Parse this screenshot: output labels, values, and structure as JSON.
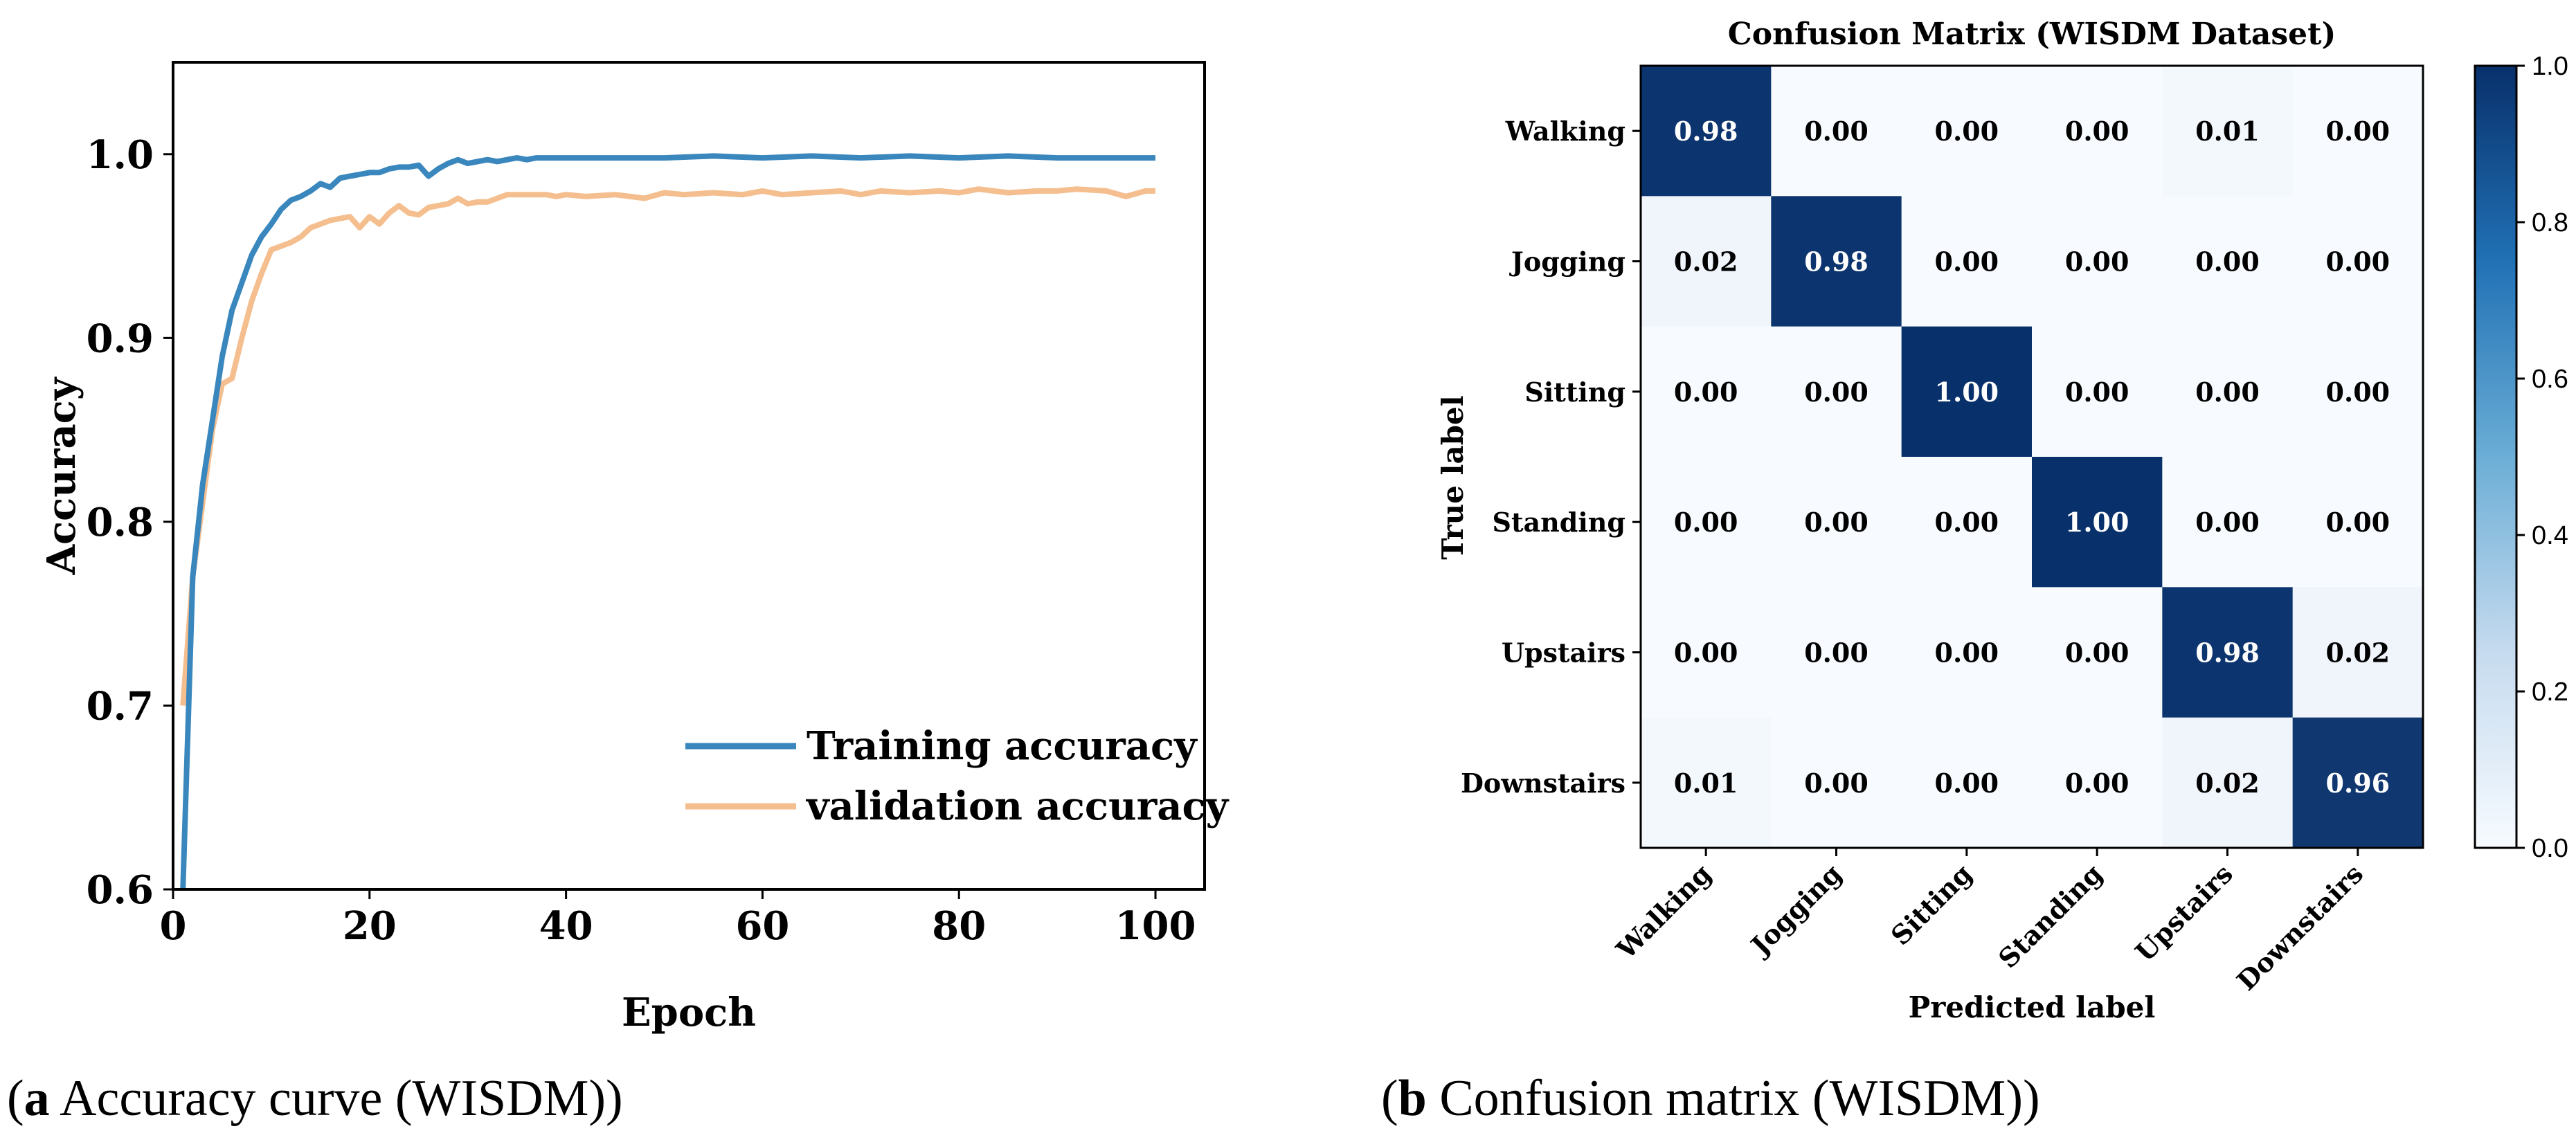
{
  "chart_data": [
    {
      "type": "line",
      "xlabel": "Epoch",
      "ylabel": "Accuracy",
      "xlim": [
        0,
        105
      ],
      "ylim": [
        0.6,
        1.05
      ],
      "xticks": [
        0,
        20,
        40,
        60,
        80,
        100
      ],
      "yticks": [
        0.6,
        0.7,
        0.8,
        0.9,
        1.0
      ],
      "xtick_labels": [
        "0",
        "20",
        "40",
        "60",
        "80",
        "100"
      ],
      "ytick_labels": [
        "0.6",
        "0.7",
        "0.8",
        "0.9",
        "1.0"
      ],
      "legend_position": "lower-right",
      "series": [
        {
          "name": "Training accuracy",
          "color": "#3a87be",
          "x": [
            1,
            2,
            3,
            4,
            5,
            6,
            7,
            8,
            9,
            10,
            11,
            12,
            13,
            14,
            15,
            16,
            17,
            18,
            19,
            20,
            21,
            22,
            23,
            24,
            25,
            26,
            27,
            28,
            29,
            30,
            31,
            32,
            33,
            34,
            35,
            36,
            37,
            38,
            39,
            40,
            45,
            50,
            55,
            60,
            65,
            70,
            75,
            80,
            85,
            90,
            95,
            100
          ],
          "values": [
            0.6,
            0.77,
            0.82,
            0.855,
            0.89,
            0.915,
            0.93,
            0.945,
            0.955,
            0.962,
            0.97,
            0.975,
            0.977,
            0.98,
            0.984,
            0.982,
            0.987,
            0.988,
            0.989,
            0.99,
            0.99,
            0.992,
            0.993,
            0.993,
            0.994,
            0.988,
            0.992,
            0.995,
            0.997,
            0.995,
            0.996,
            0.997,
            0.996,
            0.997,
            0.998,
            0.997,
            0.998,
            0.998,
            0.998,
            0.998,
            0.998,
            0.998,
            0.999,
            0.998,
            0.999,
            0.998,
            0.999,
            0.998,
            0.999,
            0.998,
            0.998,
            0.998
          ]
        },
        {
          "name": "validation accuracy",
          "color": "#f5be8f",
          "x": [
            1,
            2,
            3,
            4,
            5,
            6,
            7,
            8,
            9,
            10,
            11,
            12,
            13,
            14,
            15,
            16,
            17,
            18,
            19,
            20,
            21,
            22,
            23,
            24,
            25,
            26,
            27,
            28,
            29,
            30,
            31,
            32,
            33,
            34,
            35,
            36,
            37,
            38,
            39,
            40,
            42,
            45,
            48,
            50,
            52,
            55,
            58,
            60,
            62,
            65,
            68,
            70,
            72,
            75,
            78,
            80,
            82,
            85,
            88,
            90,
            92,
            95,
            97,
            99,
            100
          ],
          "values": [
            0.7,
            0.77,
            0.81,
            0.85,
            0.875,
            0.878,
            0.9,
            0.92,
            0.935,
            0.948,
            0.95,
            0.952,
            0.955,
            0.96,
            0.962,
            0.964,
            0.965,
            0.966,
            0.96,
            0.966,
            0.962,
            0.968,
            0.972,
            0.968,
            0.967,
            0.971,
            0.972,
            0.973,
            0.976,
            0.973,
            0.974,
            0.974,
            0.976,
            0.978,
            0.978,
            0.978,
            0.978,
            0.978,
            0.977,
            0.978,
            0.977,
            0.978,
            0.976,
            0.979,
            0.978,
            0.979,
            0.978,
            0.98,
            0.978,
            0.979,
            0.98,
            0.978,
            0.98,
            0.979,
            0.98,
            0.979,
            0.981,
            0.979,
            0.98,
            0.98,
            0.981,
            0.98,
            0.977,
            0.98,
            0.98
          ]
        }
      ]
    },
    {
      "type": "heatmap",
      "title": "Confusion Matrix (WISDM Dataset)",
      "xlabel": "Predicted label",
      "ylabel": "True label",
      "labels": [
        "Walking",
        "Jogging",
        "Sitting",
        "Standing",
        "Upstairs",
        "Downstairs"
      ],
      "matrix": [
        [
          0.98,
          0.0,
          0.0,
          0.0,
          0.01,
          0.0
        ],
        [
          0.02,
          0.98,
          0.0,
          0.0,
          0.0,
          0.0
        ],
        [
          0.0,
          0.0,
          1.0,
          0.0,
          0.0,
          0.0
        ],
        [
          0.0,
          0.0,
          0.0,
          1.0,
          0.0,
          0.0
        ],
        [
          0.0,
          0.0,
          0.0,
          0.0,
          0.98,
          0.02
        ],
        [
          0.01,
          0.0,
          0.0,
          0.0,
          0.02,
          0.96
        ]
      ],
      "colorbar_range": [
        0.0,
        1.0
      ],
      "colorbar_ticks": [
        "0.0",
        "0.2",
        "0.4",
        "0.6",
        "0.8",
        "1.0"
      ],
      "cmap_low": "#f7fbff",
      "cmap_high": "#08306b"
    }
  ],
  "captions": {
    "a_letter": "a",
    "a_text": " Accuracy curve (WISDM)",
    "b_letter": "b",
    "b_text": " Confusion matrix (WISDM)"
  }
}
